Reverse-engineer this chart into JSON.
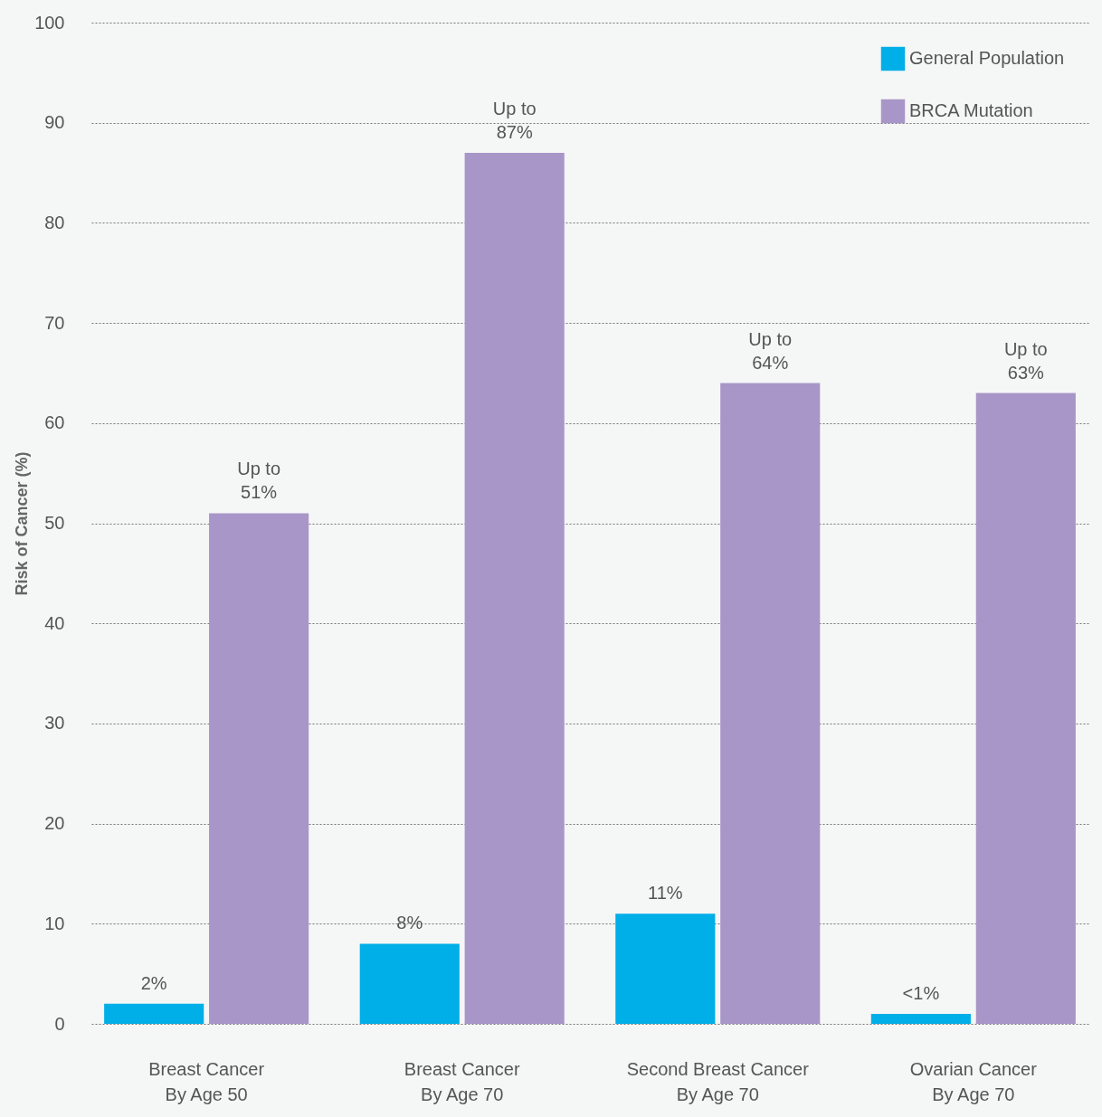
{
  "chart_data": {
    "type": "bar",
    "ylabel": "Risk of Cancer (%)",
    "categories": [
      "Breast Cancer\nBy Age 50",
      "Breast Cancer\nBy Age 70",
      "Second Breast Cancer\nBy Age 70",
      "Ovarian Cancer\nBy Age 70"
    ],
    "series": [
      {
        "name": "General Population",
        "color": "#00aee8",
        "values": [
          2,
          8,
          11,
          1
        ],
        "value_labels": [
          "2%",
          "8%",
          "11%",
          "<1%"
        ]
      },
      {
        "name": "BRCA Mutation",
        "color": "#a896c8",
        "values": [
          51,
          87,
          64,
          63
        ],
        "value_labels": [
          "Up to\n51%",
          "Up to\n87%",
          "Up to\n64%",
          "Up to\n63%"
        ]
      }
    ],
    "ylim": [
      0,
      100
    ],
    "yticks": [
      0,
      10,
      20,
      30,
      40,
      50,
      60,
      70,
      80,
      90,
      100
    ],
    "grid": "y",
    "legend": "top right"
  }
}
